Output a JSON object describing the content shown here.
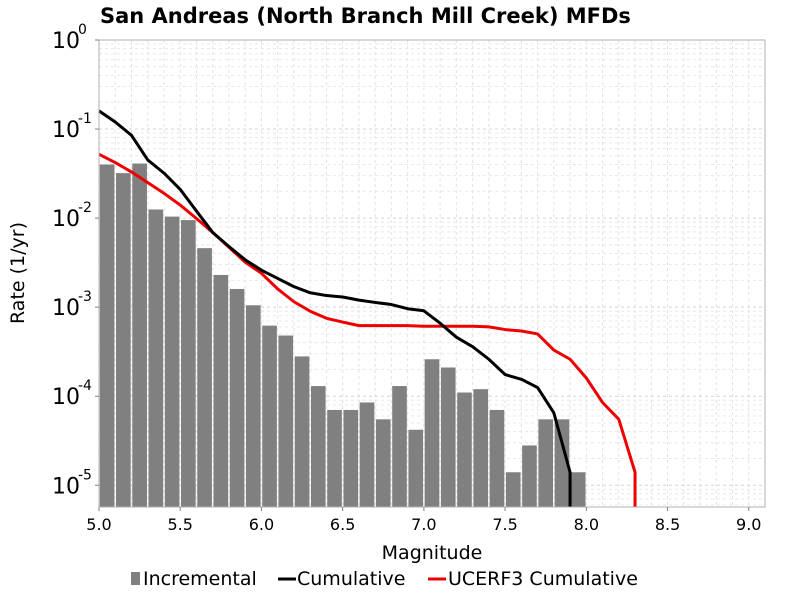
{
  "chart_data": {
    "type": "bar",
    "title": "San Andreas (North Branch Mill Creek) MFDs",
    "xlabel": "Magnitude",
    "ylabel": "Rate (1/yr)",
    "xlim": [
      5.0,
      9.1
    ],
    "ylim": [
      5.7e-06,
      1.0
    ],
    "yscale": "log",
    "grid": true,
    "legend_position": "bottom",
    "x_ticks": [
      "5.0",
      "5.5",
      "6.0",
      "6.5",
      "7.0",
      "7.5",
      "8.0",
      "8.5",
      "9.0"
    ],
    "y_ticks": [
      {
        "base": "10",
        "exp": "0",
        "value": 1
      },
      {
        "base": "10",
        "exp": "-1",
        "value": 0.1
      },
      {
        "base": "10",
        "exp": "-2",
        "value": 0.01
      },
      {
        "base": "10",
        "exp": "-3",
        "value": 0.001
      },
      {
        "base": "10",
        "exp": "-4",
        "value": 0.0001
      },
      {
        "base": "10",
        "exp": "-5",
        "value": 1e-05
      }
    ],
    "series": [
      {
        "name": "Incremental",
        "kind": "bar",
        "color": "#808080",
        "x": [
          5.05,
          5.15,
          5.25,
          5.35,
          5.45,
          5.55,
          5.65,
          5.75,
          5.85,
          5.95,
          6.05,
          6.15,
          6.25,
          6.35,
          6.45,
          6.55,
          6.65,
          6.75,
          6.85,
          6.95,
          7.05,
          7.15,
          7.25,
          7.35,
          7.45,
          7.55,
          7.65,
          7.75,
          7.85,
          7.95
        ],
        "values": [
          0.04,
          0.032,
          0.041,
          0.0125,
          0.0104,
          0.0095,
          0.0046,
          0.0023,
          0.0016,
          0.00105,
          0.00062,
          0.00048,
          0.00028,
          0.00013,
          7e-05,
          7e-05,
          8.5e-05,
          5.5e-05,
          0.00013,
          4.2e-05,
          0.00026,
          0.00021,
          0.00011,
          0.00012,
          7e-05,
          1.4e-05,
          2.8e-05,
          5.5e-05,
          5.5e-05,
          1.4e-05
        ]
      },
      {
        "name": "Cumulative",
        "kind": "line",
        "color": "#000000",
        "x": [
          5.0,
          5.1,
          5.2,
          5.3,
          5.4,
          5.5,
          5.6,
          5.7,
          5.8,
          5.9,
          6.0,
          6.1,
          6.2,
          6.3,
          6.4,
          6.5,
          6.6,
          6.7,
          6.8,
          6.9,
          7.0,
          7.1,
          7.2,
          7.3,
          7.4,
          7.5,
          7.6,
          7.7,
          7.8,
          7.9,
          7.9
        ],
        "values": [
          0.16,
          0.12,
          0.085,
          0.045,
          0.032,
          0.021,
          0.012,
          0.0069,
          0.0048,
          0.0034,
          0.0026,
          0.0021,
          0.0017,
          0.00145,
          0.00135,
          0.0013,
          0.0012,
          0.00113,
          0.00107,
          0.00096,
          0.00091,
          0.00066,
          0.00046,
          0.00036,
          0.00026,
          0.000175,
          0.000155,
          0.000125,
          6.5e-05,
          1.4e-05,
          5.7e-06
        ]
      },
      {
        "name": "UCERF3 Cumulative",
        "kind": "line",
        "color": "#ee0000",
        "x": [
          5.0,
          5.1,
          5.2,
          5.3,
          5.4,
          5.5,
          5.6,
          5.7,
          5.8,
          5.9,
          6.0,
          6.1,
          6.2,
          6.3,
          6.4,
          6.5,
          6.6,
          6.7,
          6.8,
          6.9,
          7.0,
          7.1,
          7.2,
          7.3,
          7.4,
          7.5,
          7.6,
          7.7,
          7.8,
          7.9,
          8.0,
          8.1,
          8.2,
          8.3,
          8.3
        ],
        "values": [
          0.052,
          0.042,
          0.033,
          0.025,
          0.019,
          0.014,
          0.0099,
          0.0069,
          0.0047,
          0.0032,
          0.0024,
          0.0016,
          0.00115,
          0.0009,
          0.00075,
          0.00068,
          0.00062,
          0.00062,
          0.00062,
          0.00062,
          0.00061,
          0.00061,
          0.00061,
          0.00061,
          0.0006,
          0.00056,
          0.00054,
          0.0005,
          0.00033,
          0.00026,
          0.00016,
          8.5e-05,
          5.5e-05,
          1.4e-05,
          5.7e-06
        ]
      }
    ]
  }
}
